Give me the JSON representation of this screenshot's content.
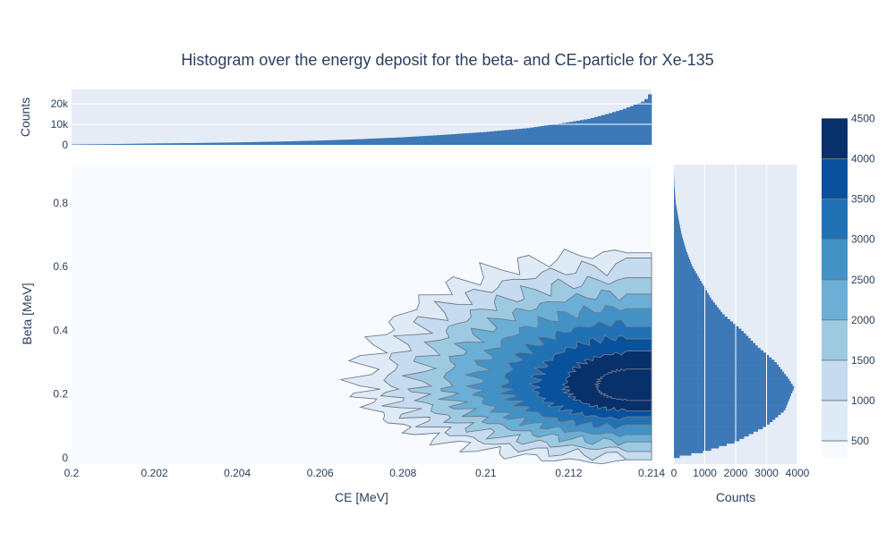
{
  "chart_data": {
    "type": "heatmap",
    "title": "Histogram over the energy deposit for the beta- and CE-particle for Xe-135",
    "main": {
      "subtype": "2d-histogram-contour",
      "xlabel": "CE [MeV]",
      "ylabel": "Beta [MeV]",
      "xlim": [
        0.2,
        0.214
      ],
      "ylim": [
        -0.02,
        0.92
      ],
      "xticks": [
        0.2,
        0.202,
        0.204,
        0.206,
        0.208,
        0.21,
        0.212,
        0.214
      ],
      "xtick_labels": [
        "0.2",
        "0.202",
        "0.204",
        "0.206",
        "0.208",
        "0.21",
        "0.212",
        "0.214"
      ],
      "yticks": [
        0,
        0.2,
        0.4,
        0.6,
        0.8
      ],
      "ytick_labels": [
        "0",
        "0.2",
        "0.4",
        "0.6",
        "0.8"
      ],
      "peak": {
        "ce": 0.2134,
        "beta": 0.225
      },
      "contour_levels": [
        500,
        1000,
        1500,
        2000,
        2500,
        3000,
        3500,
        4000,
        4500
      ]
    },
    "top_histogram": {
      "type": "bar",
      "xlabel": "",
      "ylabel": "Counts",
      "ylim": [
        0,
        27000
      ],
      "yticks": [
        0,
        10000,
        20000
      ],
      "ytick_labels": [
        "0",
        "10k",
        "20k"
      ],
      "x": [
        0.2,
        0.201,
        0.202,
        0.203,
        0.204,
        0.205,
        0.206,
        0.207,
        0.208,
        0.209,
        0.21,
        0.211,
        0.212,
        0.2125,
        0.213,
        0.2133,
        0.2136,
        0.2138,
        0.2139,
        0.214
      ],
      "values": [
        200,
        400,
        700,
        900,
        1200,
        1600,
        2100,
        2800,
        3700,
        4900,
        6300,
        8100,
        11000,
        12700,
        15400,
        17200,
        19500,
        21200,
        22800,
        26000
      ]
    },
    "right_histogram": {
      "type": "bar",
      "orientation": "horizontal",
      "xlabel": "Counts",
      "ylabel": "",
      "xlim": [
        0,
        4000
      ],
      "xticks": [
        0,
        1000,
        2000,
        3000,
        4000
      ],
      "xtick_labels": [
        "0",
        "1000",
        "2000",
        "3000",
        "4000"
      ],
      "y": [
        0.0,
        0.02,
        0.05,
        0.1,
        0.15,
        0.2,
        0.22,
        0.25,
        0.3,
        0.35,
        0.4,
        0.45,
        0.5,
        0.55,
        0.6,
        0.65,
        0.7,
        0.75,
        0.8,
        0.85,
        0.9
      ],
      "values": [
        0,
        1000,
        2000,
        3000,
        3600,
        3800,
        3900,
        3700,
        3300,
        2700,
        2200,
        1600,
        1200,
        900,
        600,
        400,
        250,
        150,
        60,
        20,
        0
      ]
    },
    "colorbar": {
      "colorscale": [
        "#f7fbff",
        "#deebf7",
        "#c6dbef",
        "#9ecae1",
        "#6baed6",
        "#4292c6",
        "#2171b5",
        "#08519c",
        "#08306b"
      ],
      "range": [
        300,
        4750
      ],
      "ticks": [
        500,
        1000,
        1500,
        2000,
        2500,
        3000,
        3500,
        4000,
        4500
      ],
      "tick_labels": [
        "500",
        "1000",
        "1500",
        "2000",
        "2500",
        "3000",
        "3500",
        "4000",
        "4500"
      ]
    },
    "colors": {
      "bar": "#3d78b7",
      "panel_bg": "#e5ecf6",
      "main_bg": "#f7fbff",
      "contour_line": "#707a88",
      "text": "#2a3f5f"
    }
  }
}
